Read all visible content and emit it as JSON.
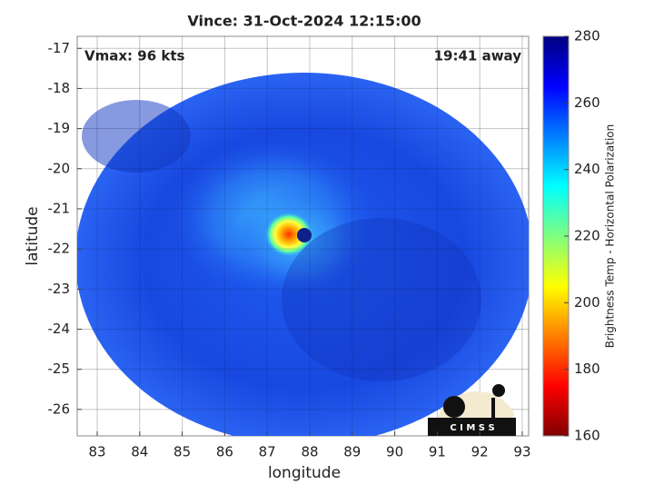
{
  "chart_data": {
    "type": "image",
    "title": "Vince: 31-Oct-2024 12:15:00",
    "xlabel": "longitude",
    "ylabel": "latitude",
    "xlim": [
      82.53,
      93.15
    ],
    "xticks": [
      83,
      84,
      85,
      86,
      87,
      88,
      89,
      90,
      91,
      92,
      93
    ],
    "ylim": [
      -26.66,
      -16.7
    ],
    "yticks": [
      -26,
      -25,
      -24,
      -23,
      -22,
      -21,
      -20,
      -19,
      -18,
      -17
    ],
    "grid": true,
    "annotations": [
      "Vmax: 96 kts",
      "19:41 away"
    ],
    "logo_text": "C I M S S",
    "colorbar": {
      "label": "Brightness Temp - Horizontal Polarization",
      "clim": [
        160,
        280
      ],
      "ticks": [
        160,
        180,
        200,
        220,
        240,
        260,
        280
      ],
      "colormap": [
        "#7f0000",
        "#ff0000",
        "#ff7f00",
        "#ffff00",
        "#7fff7f",
        "#00ffff",
        "#007fff",
        "#0000ff",
        "#00007f"
      ]
    }
  }
}
